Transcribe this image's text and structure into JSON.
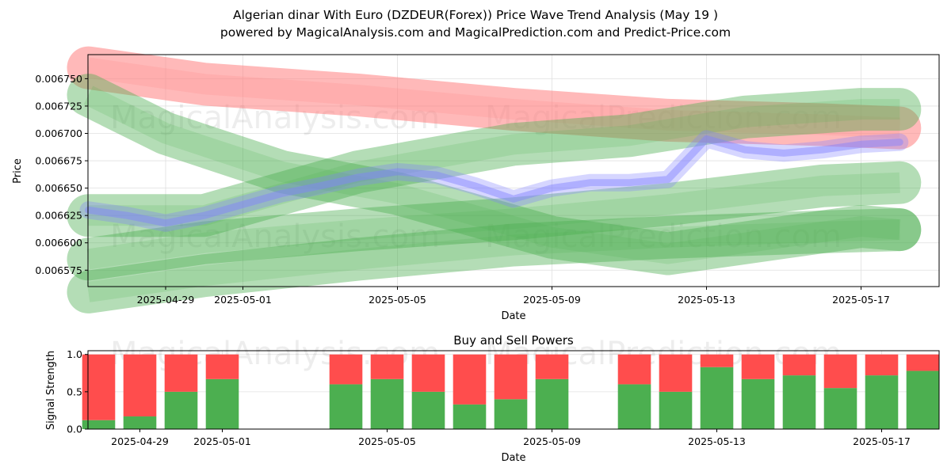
{
  "title_line1": "Algerian dinar With Euro (DZDEUR(Forex)) Price Wave Trend Analysis (May 19 )",
  "title_line2": "powered by MagicalAnalysis.com and MagicalPrediction.com and Predict-Price.com",
  "watermarks": [
    "MagicalAnalysis.com",
    "MagicalPrediction.com"
  ],
  "colors": {
    "bearish_band": "#ff7f7f",
    "bullish_band": "#4caf50",
    "actual_price": "#8080ff",
    "buy_bar": "#4caf50",
    "sell_bar": "#ff4d4d",
    "grid": "#e0e0e0"
  },
  "chart_data": [
    {
      "type": "line",
      "name": "price_wave_chart",
      "xlabel": "Date",
      "ylabel": "Price",
      "x_ticks": [
        "2025-04-29",
        "2025-05-01",
        "2025-05-05",
        "2025-05-09",
        "2025-05-13",
        "2025-05-17"
      ],
      "y_ticks": [
        "0.006575",
        "0.006600",
        "0.006625",
        "0.006650",
        "0.006675",
        "0.006700",
        "0.006725",
        "0.006750"
      ],
      "xlim": [
        "2025-04-26",
        "2025-05-19"
      ],
      "ylim": [
        0.00656,
        0.006772
      ],
      "grid": true,
      "bands": [
        {
          "color": "red",
          "x": [
            "2025-04-27",
            "2025-04-30",
            "2025-05-04",
            "2025-05-08",
            "2025-05-12",
            "2025-05-16",
            "2025-05-18"
          ],
          "y": [
            0.00676,
            0.006745,
            0.006735,
            0.006722,
            0.006712,
            0.006708,
            0.006705
          ]
        },
        {
          "color": "green",
          "x": [
            "2025-04-27",
            "2025-04-29",
            "2025-05-02",
            "2025-05-05",
            "2025-05-09",
            "2025-05-12",
            "2025-05-15",
            "2025-05-17",
            "2025-05-18"
          ],
          "y": [
            0.006735,
            0.0067,
            0.006665,
            0.006645,
            0.006605,
            0.00659,
            0.006605,
            0.006615,
            0.006612
          ]
        },
        {
          "color": "green",
          "x": [
            "2025-04-27",
            "2025-04-30",
            "2025-05-04",
            "2025-05-08",
            "2025-05-12",
            "2025-05-16",
            "2025-05-18"
          ],
          "y": [
            0.006585,
            0.0066,
            0.006612,
            0.006622,
            0.006635,
            0.006652,
            0.006655
          ]
        },
        {
          "color": "green",
          "x": [
            "2025-04-27",
            "2025-04-30",
            "2025-05-04",
            "2025-05-08",
            "2025-05-12",
            "2025-05-16",
            "2025-05-18"
          ],
          "y": [
            0.006555,
            0.00657,
            0.006585,
            0.006598,
            0.006605,
            0.00661,
            0.006612
          ]
        },
        {
          "color": "green",
          "x": [
            "2025-04-27",
            "2025-04-30",
            "2025-05-04",
            "2025-05-08",
            "2025-05-11",
            "2025-05-14",
            "2025-05-17",
            "2025-05-18"
          ],
          "y": [
            0.006625,
            0.006625,
            0.006665,
            0.00669,
            0.006698,
            0.006715,
            0.006722,
            0.006722
          ]
        }
      ],
      "series": [
        {
          "x": [
            "2025-04-27",
            "2025-04-28",
            "2025-04-29",
            "2025-04-30",
            "2025-05-01",
            "2025-05-02",
            "2025-05-03",
            "2025-05-04",
            "2025-05-05",
            "2025-05-06",
            "2025-05-07",
            "2025-05-08",
            "2025-05-09",
            "2025-05-10",
            "2025-05-11",
            "2025-05-12",
            "2025-05-13",
            "2025-05-14",
            "2025-05-15",
            "2025-05-16",
            "2025-05-17",
            "2025-05-18"
          ],
          "y": [
            0.00663,
            0.006625,
            0.006618,
            0.006625,
            0.006635,
            0.006645,
            0.006652,
            0.00666,
            0.006665,
            0.006662,
            0.006652,
            0.00664,
            0.00665,
            0.006655,
            0.006655,
            0.006658,
            0.006695,
            0.006685,
            0.006682,
            0.006685,
            0.00669,
            0.006692
          ]
        }
      ]
    },
    {
      "type": "bar",
      "name": "buy_sell_powers",
      "title": "Buy and Sell Powers",
      "xlabel": "Date",
      "ylabel": "Signal Strength",
      "x_ticks": [
        "2025-04-29",
        "2025-05-01",
        "2025-05-05",
        "2025-05-09",
        "2025-05-13",
        "2025-05-17"
      ],
      "y_ticks": [
        "0.0",
        "0.5",
        "1.0"
      ],
      "ylim": [
        0,
        1.05
      ],
      "categories": [
        "2025-04-28",
        "2025-04-29",
        "2025-04-30",
        "2025-05-01",
        "2025-05-04",
        "2025-05-05",
        "2025-05-06",
        "2025-05-07",
        "2025-05-08",
        "2025-05-09",
        "2025-05-11",
        "2025-05-12",
        "2025-05-13",
        "2025-05-14",
        "2025-05-15",
        "2025-05-16",
        "2025-05-17",
        "2025-05-18"
      ],
      "series": [
        {
          "name": "buy",
          "values": [
            0.12,
            0.17,
            0.5,
            0.67,
            0.6,
            0.67,
            0.5,
            0.33,
            0.4,
            0.67,
            0.6,
            0.5,
            0.83,
            0.67,
            0.72,
            0.55,
            0.72,
            0.78
          ]
        },
        {
          "name": "sell",
          "values": [
            0.88,
            0.83,
            0.5,
            0.33,
            0.4,
            0.33,
            0.5,
            0.67,
            0.6,
            0.33,
            0.4,
            0.5,
            0.17,
            0.33,
            0.28,
            0.45,
            0.28,
            0.22
          ]
        }
      ]
    }
  ]
}
